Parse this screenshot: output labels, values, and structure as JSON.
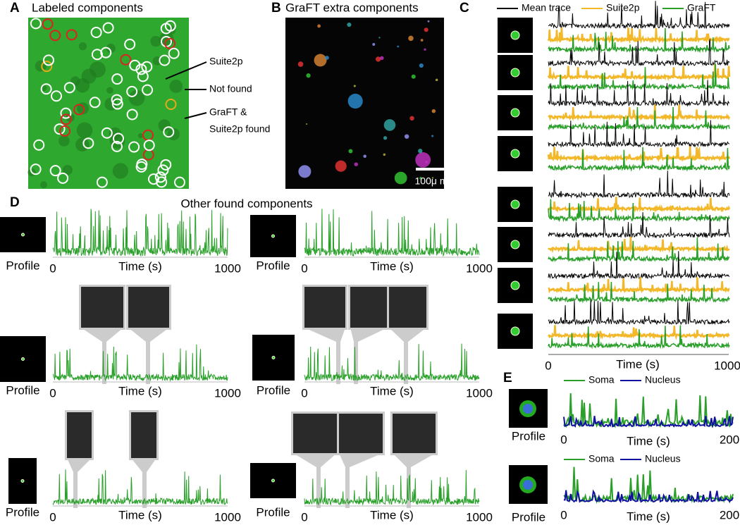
{
  "panels": {
    "a": {
      "letter": "A",
      "title": "Labeled components",
      "annotations": [
        "Suite2p",
        "Not found",
        "GraFT &",
        "Suite2p found"
      ]
    },
    "b": {
      "letter": "B",
      "title": "GraFT extra components",
      "scale_bar": "100μ m"
    },
    "c": {
      "letter": "C",
      "legend": [
        "Mean trace",
        "Suite2p",
        "GraFT"
      ],
      "x_label": "Time (s)",
      "x_ticks": [
        0,
        1000
      ]
    },
    "d": {
      "letter": "D",
      "title": "Other found components",
      "subpanels": [
        {
          "profile_label": "Profile",
          "x_label": "Time (s)",
          "x_ticks": [
            0,
            1000
          ]
        },
        {
          "profile_label": "Profile",
          "x_label": "Time (s)",
          "x_ticks": [
            0,
            1000
          ]
        },
        {
          "profile_label": "Profile",
          "x_label": "Time (s)",
          "x_ticks": [
            0,
            1000
          ]
        },
        {
          "profile_label": "Profile",
          "x_label": "Time (s)",
          "x_ticks": [
            0,
            1000
          ]
        },
        {
          "profile_label": "Profile",
          "x_label": "Time (s)",
          "x_ticks": [
            0,
            1000
          ]
        },
        {
          "profile_label": "Profile",
          "x_label": "Time (s)",
          "x_ticks": [
            0,
            1000
          ]
        }
      ]
    },
    "e": {
      "letter": "E",
      "subpanels": [
        {
          "legend": [
            "Soma",
            "Nucleus"
          ],
          "profile_label": "Profile",
          "x_label": "Time (s)",
          "x_ticks": [
            0,
            200
          ]
        },
        {
          "legend": [
            "Soma",
            "Nucleus"
          ],
          "profile_label": "Profile",
          "x_label": "Time (s)",
          "x_ticks": [
            0,
            200
          ]
        }
      ]
    }
  }
}
